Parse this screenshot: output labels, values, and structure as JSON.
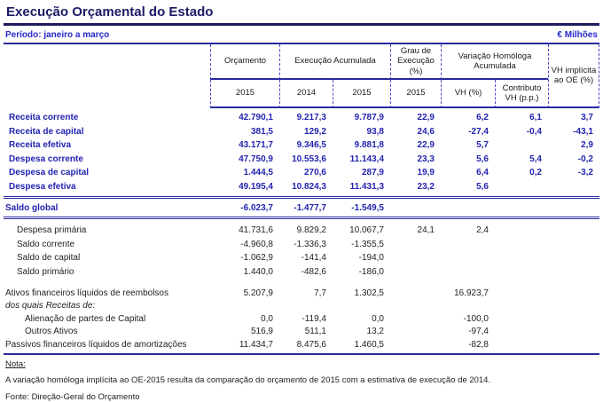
{
  "colors": {
    "title": "#1b1b66",
    "title_line": "#1c1c5e",
    "line": "#2a2a9e",
    "dash": "#4646c8",
    "blue": "#2323b0",
    "blue_bright": "#2828cc"
  },
  "title": "Execução Orçamental do Estado",
  "period_label": "Período: janeiro a março",
  "unit_label": "€ Milhões",
  "table": {
    "header": {
      "orcamento": "Orçamento",
      "execucao_acumulada": "Execução Acumulada",
      "grau_execucao": "Grau de Execução (%)",
      "variacao_homologa": "Variação Homóloga Acumulada",
      "vh_implicita": "VH implícita ao OE (%)",
      "year_orcamento": "2015",
      "year_exec_1": "2014",
      "year_exec_2": "2015",
      "year_grau": "2015",
      "vh_pct": "VH (%)",
      "contributo_vh": "Contributo VH (p.p.)"
    },
    "rows": [
      {
        "label": "Receita corrente",
        "section": "main",
        "style": "blue",
        "indent": 1,
        "values": [
          "42.790,1",
          "9.217,3",
          "9.787,9",
          "22,9",
          "6,2",
          "6,1",
          "3,7"
        ]
      },
      {
        "label": "Receita de capital",
        "section": "main",
        "style": "blue",
        "indent": 1,
        "values": [
          "381,5",
          "129,2",
          "93,8",
          "24,6",
          "-27,4",
          "-0,4",
          "-43,1"
        ]
      },
      {
        "label": "Receita efetiva",
        "section": "main",
        "style": "blue",
        "indent": 1,
        "values": [
          "43.171,7",
          "9.346,5",
          "9.881,8",
          "22,9",
          "5,7",
          "",
          "2,9"
        ]
      },
      {
        "label": "Despesa corrente",
        "section": "main",
        "style": "blue",
        "indent": 1,
        "values": [
          "47.750,9",
          "10.553,6",
          "11.143,4",
          "23,3",
          "5,6",
          "5,4",
          "-0,2"
        ]
      },
      {
        "label": "Despesa de capital",
        "section": "main",
        "style": "blue",
        "indent": 1,
        "values": [
          "1.444,5",
          "270,6",
          "287,9",
          "19,9",
          "6,4",
          "0,2",
          "-3,2"
        ]
      },
      {
        "label": "Despesa efetiva",
        "section": "main",
        "style": "blue",
        "indent": 1,
        "values": [
          "49.195,4",
          "10.824,3",
          "11.431,3",
          "23,2",
          "5,6",
          "",
          ""
        ]
      },
      {
        "label": "Saldo global",
        "section": "saldo",
        "style": "blue",
        "indent": 0,
        "values": [
          "-6.023,7",
          "-1.477,7",
          "-1.549,5",
          "",
          "",
          "",
          ""
        ]
      },
      {
        "label": "Despesa primária",
        "section": "mid",
        "style": "plain",
        "indent": 2,
        "values": [
          "41.731,6",
          "9.829,2",
          "10.067,7",
          "24,1",
          "2,4",
          "",
          ""
        ]
      },
      {
        "label": "Saldo corrente",
        "section": "mid",
        "style": "plain",
        "indent": 2,
        "values": [
          "-4.960,8",
          "-1.336,3",
          "-1.355,5",
          "",
          "",
          "",
          ""
        ]
      },
      {
        "label": "Saldo de capital",
        "section": "mid",
        "style": "plain",
        "indent": 2,
        "values": [
          "-1.062,9",
          "-141,4",
          "-194,0",
          "",
          "",
          "",
          ""
        ]
      },
      {
        "label": "Saldo primário",
        "section": "mid",
        "style": "plain",
        "indent": 2,
        "values": [
          "1.440,0",
          "-482,6",
          "-186,0",
          "",
          "",
          "",
          ""
        ]
      },
      {
        "label": "Ativos financeiros líquidos de reembolsos",
        "section": "fin",
        "style": "plain",
        "indent": 0,
        "values": [
          "5.207,9",
          "7,7",
          "1.302,5",
          "",
          "16.923,7",
          "",
          ""
        ]
      },
      {
        "label": "dos quais Receitas de:",
        "section": "fin",
        "style": "italic",
        "indent": 0,
        "values": [
          "",
          "",
          "",
          "",
          "",
          "",
          ""
        ]
      },
      {
        "label": "Alienação de partes de Capital",
        "section": "fin",
        "style": "plain",
        "indent": 3,
        "values": [
          "0,0",
          "-119,4",
          "0,0",
          "",
          "-100,0",
          "",
          ""
        ]
      },
      {
        "label": "Outros Ativos",
        "section": "fin",
        "style": "plain",
        "indent": 3,
        "values": [
          "516,9",
          "511,1",
          "13,2",
          "",
          "-97,4",
          "",
          ""
        ]
      },
      {
        "label": "Passivos financeiros líquidos de amortizações",
        "section": "fin",
        "style": "plain",
        "indent": 0,
        "values": [
          "11.434,7",
          "8.475,6",
          "1.460,5",
          "",
          "-82,8",
          "",
          ""
        ]
      }
    ]
  },
  "footer": {
    "note_label": "Nota:",
    "note_text": "A variação homóloga implícita ao OE-2015 resulta da comparação do orçamento de 2015 com a estimativa de execução de 2014.",
    "source": "Fonte: Direção-Geral do Orçamento"
  }
}
